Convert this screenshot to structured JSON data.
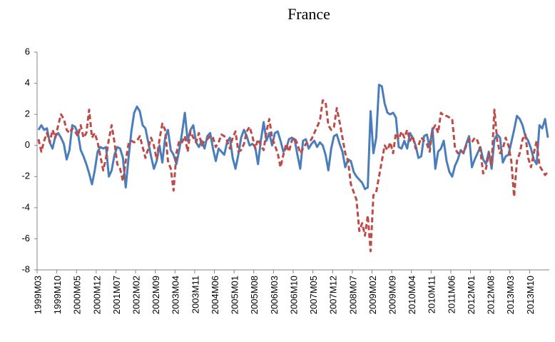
{
  "chart_data": {
    "type": "line",
    "title": "France",
    "categories": [
      "1999M03",
      null,
      null,
      null,
      null,
      null,
      null,
      "1999M10",
      null,
      null,
      null,
      null,
      null,
      null,
      "2000M05",
      null,
      null,
      null,
      null,
      null,
      null,
      "2000M12",
      null,
      null,
      null,
      null,
      null,
      null,
      "2001M07",
      null,
      null,
      null,
      null,
      null,
      null,
      "2002M02",
      null,
      null,
      null,
      null,
      null,
      null,
      "2002M09",
      null,
      null,
      null,
      null,
      null,
      null,
      "2003M04",
      null,
      null,
      null,
      null,
      null,
      null,
      "2003M11",
      null,
      null,
      null,
      null,
      null,
      null,
      "2004M06",
      null,
      null,
      null,
      null,
      null,
      null,
      "2005M01",
      null,
      null,
      null,
      null,
      null,
      null,
      "2005M08",
      null,
      null,
      null,
      null,
      null,
      null,
      "2006M03",
      null,
      null,
      null,
      null,
      null,
      null,
      "2006M10",
      null,
      null,
      null,
      null,
      null,
      null,
      "2007M05",
      null,
      null,
      null,
      null,
      null,
      null,
      "2007M12",
      null,
      null,
      null,
      null,
      null,
      null,
      "2008M07",
      null,
      null,
      null,
      null,
      null,
      null,
      "2009M02",
      null,
      null,
      null,
      null,
      null,
      null,
      "2009M09",
      null,
      null,
      null,
      null,
      null,
      null,
      "2010M04",
      null,
      null,
      null,
      null,
      null,
      null,
      "2010M11",
      null,
      null,
      null,
      null,
      null,
      null,
      "2011M06",
      null,
      null,
      null,
      null,
      null,
      null,
      "2012M01",
      null,
      null,
      null,
      null,
      null,
      null,
      "2012M08",
      null,
      null,
      null,
      null,
      null,
      null,
      "2013M03",
      null,
      null,
      null,
      null,
      null,
      null,
      "2013M10",
      null,
      null,
      null,
      null,
      null,
      null
    ],
    "series": [
      {
        "color": "#4a7ebb",
        "dashed": false,
        "values": [
          1.0,
          1.3,
          1.0,
          1.1,
          0.2,
          -0.2,
          0.6,
          0.8,
          0.5,
          0.1,
          -0.9,
          -0.3,
          1.3,
          1.2,
          0.8,
          -0.3,
          -0.7,
          -1.2,
          -1.8,
          -2.5,
          -1.6,
          -0.4,
          -0.1,
          -0.2,
          -0.1,
          -2.0,
          -1.6,
          -0.6,
          -0.1,
          -0.2,
          -0.8,
          -2.7,
          -0.8,
          0.9,
          2.1,
          2.5,
          2.2,
          1.3,
          1.1,
          0.2,
          -0.7,
          -1.5,
          -1.0,
          0.0,
          -1.1,
          0.5,
          1.0,
          -0.3,
          -0.6,
          -1.2,
          -0.3,
          0.8,
          2.1,
          0.3,
          1.0,
          1.3,
          0.2,
          -0.1,
          0.3,
          -0.2,
          0.6,
          0.8,
          -0.2,
          -1.0,
          -0.2,
          -0.4,
          -0.6,
          0.2,
          0.5,
          -0.8,
          -1.5,
          -0.6,
          0.5,
          1.0,
          0.6,
          0.0,
          0.1,
          -0.1,
          -1.2,
          0.3,
          1.5,
          0.3,
          0.8,
          0.0,
          0.8,
          0.9,
          0.3,
          -0.4,
          -0.2,
          0.4,
          0.5,
          0.4,
          -0.6,
          -1.5,
          0.3,
          0.4,
          -0.2,
          0.1,
          0.3,
          -0.1,
          0.2,
          0.0,
          -0.6,
          -1.6,
          -0.2,
          0.6,
          0.7,
          0.1,
          -0.4,
          -1.4,
          -0.9,
          -1.0,
          -1.7,
          -2.0,
          -2.2,
          -2.4,
          -2.8,
          -2.7,
          2.2,
          -0.5,
          0.5,
          3.9,
          3.8,
          2.7,
          2.1,
          2.0,
          2.1,
          1.8,
          -0.1,
          -0.2,
          0.3,
          -0.2,
          0.8,
          0.5,
          0.0,
          -0.8,
          -0.7,
          0.6,
          0.7,
          -0.1,
          1.1,
          -1.5,
          -0.4,
          -0.2,
          0.3,
          -1.0,
          -1.7,
          -2.0,
          -1.3,
          -0.9,
          -0.3,
          -0.5,
          0.1,
          0.6,
          -1.4,
          -0.9,
          -0.5,
          -0.1,
          -0.9,
          -1.2,
          -0.4,
          -1.5,
          0.4,
          0.7,
          0.5,
          -1.1,
          -0.7,
          -0.6,
          0.2,
          1.0,
          1.9,
          1.7,
          1.3,
          0.6,
          0.3,
          -0.2,
          -0.9,
          -1.2,
          1.3,
          1.1,
          1.7,
          0.5
        ]
      },
      {
        "color": "#be4b48",
        "dashed": true,
        "values": [
          0.4,
          -0.4,
          0.3,
          0.8,
          0.2,
          1.0,
          0.5,
          1.3,
          2.0,
          1.7,
          1.0,
          0.8,
          1.1,
          0.9,
          0.6,
          1.3,
          0.5,
          0.8,
          2.3,
          0.5,
          0.8,
          0.2,
          -0.7,
          -1.6,
          -0.8,
          0.4,
          1.3,
          0.2,
          -1.2,
          -1.5,
          -2.3,
          -1.0,
          0.1,
          0.3,
          0.2,
          0.3,
          0.6,
          -0.1,
          -0.8,
          -0.2,
          0.5,
          0.0,
          -0.9,
          0.4,
          1.4,
          1.0,
          -1.0,
          -1.5,
          -2.9,
          -0.5,
          0.3,
          0.2,
          0.6,
          -0.4,
          0.9,
          0.5,
          0.2,
          0.8,
          0.0,
          0.3,
          0.4,
          0.6,
          0.5,
          -0.1,
          0.2,
          0.7,
          0.6,
          0.3,
          -0.2,
          0.5,
          0.9,
          -0.4,
          -0.3,
          0.1,
          0.9,
          1.2,
          0.6,
          -0.2,
          0.4,
          0.0,
          -0.3,
          0.9,
          1.7,
          0.5,
          0.0,
          -0.5,
          -1.4,
          -0.6,
          0.1,
          -0.4,
          0.3,
          0.5,
          0.1,
          -0.5,
          -0.2,
          0.1,
          0.2,
          0.4,
          0.8,
          1.2,
          1.6,
          2.9,
          2.8,
          1.3,
          1.0,
          1.2,
          2.4,
          1.5,
          0.5,
          -0.5,
          -1.0,
          -2.5,
          -3.0,
          -3.5,
          -5.5,
          -5.0,
          -5.8,
          -4.5,
          -6.8,
          -3.2,
          -3.0,
          -2.0,
          -1.0,
          0.0,
          -0.3,
          0.2,
          -0.5,
          0.8,
          0.4,
          0.9,
          0.5,
          1.0,
          0.3,
          0.6,
          -0.2,
          0.0,
          0.5,
          0.3,
          0.1,
          -0.4,
          1.0,
          1.3,
          0.8,
          2.1,
          1.9,
          1.9,
          1.8,
          1.7,
          -0.2,
          -0.5,
          -0.3,
          -0.5,
          0.0,
          0.4,
          0.2,
          0.5,
          0.3,
          -0.3,
          -1.8,
          -1.5,
          -0.5,
          -1.2,
          2.3,
          0.3,
          -0.5,
          -0.2,
          0.5,
          0.0,
          -1.0,
          -3.3,
          -1.0,
          -0.5,
          0.4,
          0.7,
          -0.8,
          -1.4,
          -0.5,
          0.3,
          -1.3,
          -1.6,
          -1.9,
          -1.7
        ]
      }
    ],
    "ylim": [
      -8,
      6
    ],
    "yticks": [
      -8,
      -6,
      -4,
      -2,
      0,
      2,
      4,
      6
    ],
    "grid": false
  }
}
